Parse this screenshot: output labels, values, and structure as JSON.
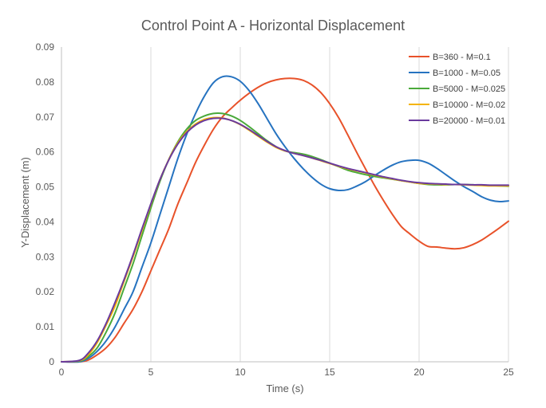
{
  "chart_data": {
    "type": "line",
    "title": "Control Point A - Horizontal Displacement",
    "xlabel": "Time (s)",
    "ylabel": "Y-Displacement (m)",
    "xlim": [
      0,
      25
    ],
    "ylim": [
      0,
      0.09
    ],
    "xticks": [
      0,
      5,
      10,
      15,
      20,
      25
    ],
    "xtick_labels": [
      "0",
      "5",
      "10",
      "15",
      "20",
      "25"
    ],
    "yticks": [
      0,
      0.01,
      0.02,
      0.03,
      0.04,
      0.05,
      0.06,
      0.07,
      0.08,
      0.09
    ],
    "ytick_labels": [
      "0",
      "0.01",
      "0.02",
      "0.03",
      "0.04",
      "0.05",
      "0.06",
      "0.07",
      "0.08",
      "0.09"
    ],
    "grid": "vertical",
    "legend_position": "top-right",
    "series": [
      {
        "name": "B=360 - M=0.1",
        "color": "#e8522a",
        "points": [
          [
            0,
            0
          ],
          [
            1,
            0
          ],
          [
            1.5,
            0.0005
          ],
          [
            2,
            0.002
          ],
          [
            2.5,
            0.004
          ],
          [
            3,
            0.007
          ],
          [
            3.5,
            0.011
          ],
          [
            4,
            0.015
          ],
          [
            4.5,
            0.02
          ],
          [
            5,
            0.026
          ],
          [
            5.5,
            0.032
          ],
          [
            6,
            0.038
          ],
          [
            6.5,
            0.045
          ],
          [
            7,
            0.051
          ],
          [
            7.5,
            0.057
          ],
          [
            8,
            0.062
          ],
          [
            8.5,
            0.0665
          ],
          [
            9,
            0.07
          ],
          [
            9.5,
            0.0725
          ],
          [
            10,
            0.0748
          ],
          [
            10.5,
            0.0768
          ],
          [
            11,
            0.0785
          ],
          [
            11.5,
            0.0798
          ],
          [
            12,
            0.0806
          ],
          [
            12.5,
            0.081
          ],
          [
            13,
            0.081
          ],
          [
            13.5,
            0.0805
          ],
          [
            14,
            0.0792
          ],
          [
            14.5,
            0.077
          ],
          [
            15,
            0.0738
          ],
          [
            15.5,
            0.0698
          ],
          [
            16,
            0.065
          ],
          [
            16.5,
            0.06
          ],
          [
            17,
            0.0552
          ],
          [
            17.5,
            0.0505
          ],
          [
            18,
            0.0462
          ],
          [
            18.5,
            0.0422
          ],
          [
            19,
            0.0387
          ],
          [
            19.5,
            0.0365
          ],
          [
            20,
            0.0345
          ],
          [
            20.5,
            0.033
          ],
          [
            21,
            0.0328
          ],
          [
            21.5,
            0.0325
          ],
          [
            22,
            0.0323
          ],
          [
            22.5,
            0.0326
          ],
          [
            23,
            0.0335
          ],
          [
            23.5,
            0.0348
          ],
          [
            24,
            0.0365
          ],
          [
            24.5,
            0.0383
          ],
          [
            25,
            0.0402
          ]
        ]
      },
      {
        "name": "B=1000 - M=0.05",
        "color": "#2673c0",
        "points": [
          [
            0,
            0
          ],
          [
            1,
            0
          ],
          [
            1.5,
            0.001
          ],
          [
            2,
            0.003
          ],
          [
            2.5,
            0.006
          ],
          [
            3,
            0.01
          ],
          [
            3.5,
            0.015
          ],
          [
            4,
            0.02
          ],
          [
            4.5,
            0.027
          ],
          [
            5,
            0.034
          ],
          [
            5.5,
            0.042
          ],
          [
            6,
            0.05
          ],
          [
            6.5,
            0.058
          ],
          [
            7,
            0.065
          ],
          [
            7.5,
            0.071
          ],
          [
            8,
            0.076
          ],
          [
            8.5,
            0.0798
          ],
          [
            9,
            0.0815
          ],
          [
            9.5,
            0.0815
          ],
          [
            10,
            0.0802
          ],
          [
            10.5,
            0.0775
          ],
          [
            11,
            0.0738
          ],
          [
            11.5,
            0.0695
          ],
          [
            12,
            0.0652
          ],
          [
            12.5,
            0.0615
          ],
          [
            13,
            0.0582
          ],
          [
            13.5,
            0.0553
          ],
          [
            14,
            0.0528
          ],
          [
            14.5,
            0.0508
          ],
          [
            15,
            0.0495
          ],
          [
            15.5,
            0.049
          ],
          [
            16,
            0.0492
          ],
          [
            16.5,
            0.0502
          ],
          [
            17,
            0.0515
          ],
          [
            17.5,
            0.0532
          ],
          [
            18,
            0.0548
          ],
          [
            18.5,
            0.0562
          ],
          [
            19,
            0.0572
          ],
          [
            19.5,
            0.0576
          ],
          [
            20,
            0.0576
          ],
          [
            20.5,
            0.0568
          ],
          [
            21,
            0.0553
          ],
          [
            21.5,
            0.0535
          ],
          [
            22,
            0.0517
          ],
          [
            22.5,
            0.0501
          ],
          [
            23,
            0.0487
          ],
          [
            23.5,
            0.0472
          ],
          [
            24,
            0.0462
          ],
          [
            24.5,
            0.0458
          ],
          [
            25,
            0.046
          ]
        ]
      },
      {
        "name": "B=5000 - M=0.025",
        "color": "#4aa93a",
        "points": [
          [
            0,
            0
          ],
          [
            1,
            0.0002
          ],
          [
            1.5,
            0.0015
          ],
          [
            2,
            0.004
          ],
          [
            2.5,
            0.0085
          ],
          [
            3,
            0.014
          ],
          [
            3.5,
            0.021
          ],
          [
            4,
            0.028
          ],
          [
            4.5,
            0.036
          ],
          [
            5,
            0.044
          ],
          [
            5.5,
            0.0515
          ],
          [
            6,
            0.0578
          ],
          [
            6.5,
            0.0628
          ],
          [
            7,
            0.0665
          ],
          [
            7.5,
            0.069
          ],
          [
            8,
            0.0703
          ],
          [
            8.5,
            0.071
          ],
          [
            9,
            0.071
          ],
          [
            9.5,
            0.0703
          ],
          [
            10,
            0.069
          ],
          [
            10.5,
            0.0672
          ],
          [
            11,
            0.0652
          ],
          [
            11.5,
            0.0632
          ],
          [
            12,
            0.0615
          ],
          [
            12.5,
            0.0603
          ],
          [
            13,
            0.0598
          ],
          [
            13.5,
            0.0594
          ],
          [
            14,
            0.0587
          ],
          [
            14.5,
            0.0578
          ],
          [
            15,
            0.0568
          ],
          [
            15.5,
            0.0558
          ],
          [
            16,
            0.0548
          ],
          [
            16.5,
            0.0541
          ],
          [
            17,
            0.0535
          ],
          [
            17.5,
            0.053
          ],
          [
            18,
            0.0526
          ],
          [
            18.5,
            0.0522
          ],
          [
            19,
            0.0518
          ],
          [
            19.5,
            0.0514
          ],
          [
            20,
            0.051
          ],
          [
            20.5,
            0.0507
          ],
          [
            21,
            0.0506
          ],
          [
            21.5,
            0.0506
          ],
          [
            22,
            0.0507
          ],
          [
            22.5,
            0.0507
          ],
          [
            23,
            0.0506
          ],
          [
            23.5,
            0.0505
          ],
          [
            24,
            0.0504
          ],
          [
            24.5,
            0.0503
          ],
          [
            25,
            0.0502
          ]
        ]
      },
      {
        "name": "B=10000 - M=0.02",
        "color": "#f4b400",
        "points": [
          [
            0,
            0
          ],
          [
            1,
            0.0003
          ],
          [
            1.5,
            0.002
          ],
          [
            2,
            0.0055
          ],
          [
            2.5,
            0.0105
          ],
          [
            3,
            0.016
          ],
          [
            3.5,
            0.023
          ],
          [
            4,
            0.03
          ],
          [
            4.5,
            0.0375
          ],
          [
            5,
            0.045
          ],
          [
            5.5,
            0.052
          ],
          [
            6,
            0.0578
          ],
          [
            6.5,
            0.0625
          ],
          [
            7,
            0.0658
          ],
          [
            7.5,
            0.068
          ],
          [
            8,
            0.0693
          ],
          [
            8.5,
            0.0698
          ],
          [
            9,
            0.0697
          ],
          [
            9.5,
            0.069
          ],
          [
            10,
            0.0678
          ],
          [
            10.5,
            0.0662
          ],
          [
            11,
            0.0645
          ],
          [
            11.5,
            0.0628
          ],
          [
            12,
            0.0613
          ],
          [
            12.5,
            0.0603
          ],
          [
            13,
            0.0596
          ],
          [
            13.5,
            0.059
          ],
          [
            14,
            0.0583
          ],
          [
            14.5,
            0.0575
          ],
          [
            15,
            0.0567
          ],
          [
            15.5,
            0.0559
          ],
          [
            16,
            0.0552
          ],
          [
            16.5,
            0.0546
          ],
          [
            17,
            0.054
          ],
          [
            17.5,
            0.0534
          ],
          [
            18,
            0.0528
          ],
          [
            18.5,
            0.0523
          ],
          [
            19,
            0.0518
          ],
          [
            19.5,
            0.0514
          ],
          [
            20,
            0.051
          ],
          [
            20.5,
            0.0509
          ],
          [
            21,
            0.0508
          ],
          [
            21.5,
            0.0507
          ],
          [
            22,
            0.0507
          ],
          [
            22.5,
            0.0506
          ],
          [
            23,
            0.0505
          ],
          [
            23.5,
            0.0504
          ],
          [
            24,
            0.0503
          ],
          [
            24.5,
            0.0503
          ],
          [
            25,
            0.0503
          ]
        ]
      },
      {
        "name": "B=20000 - M=0.01",
        "color": "#6a3a9e",
        "points": [
          [
            0,
            0
          ],
          [
            1,
            0.0004
          ],
          [
            1.5,
            0.0025
          ],
          [
            2,
            0.006
          ],
          [
            2.5,
            0.011
          ],
          [
            3,
            0.017
          ],
          [
            3.5,
            0.0235
          ],
          [
            4,
            0.0305
          ],
          [
            4.5,
            0.038
          ],
          [
            5,
            0.0452
          ],
          [
            5.5,
            0.052
          ],
          [
            6,
            0.0577
          ],
          [
            6.5,
            0.0622
          ],
          [
            7,
            0.0655
          ],
          [
            7.5,
            0.0677
          ],
          [
            8,
            0.069
          ],
          [
            8.5,
            0.0696
          ],
          [
            9,
            0.0696
          ],
          [
            9.5,
            0.069
          ],
          [
            10,
            0.0679
          ],
          [
            10.5,
            0.0664
          ],
          [
            11,
            0.0647
          ],
          [
            11.5,
            0.063
          ],
          [
            12,
            0.0615
          ],
          [
            12.5,
            0.0604
          ],
          [
            13,
            0.0596
          ],
          [
            13.5,
            0.059
          ],
          [
            14,
            0.0583
          ],
          [
            14.5,
            0.0576
          ],
          [
            15,
            0.0568
          ],
          [
            15.5,
            0.056
          ],
          [
            16,
            0.0553
          ],
          [
            16.5,
            0.0547
          ],
          [
            17,
            0.0541
          ],
          [
            17.5,
            0.0535
          ],
          [
            18,
            0.0529
          ],
          [
            18.5,
            0.0524
          ],
          [
            19,
            0.0519
          ],
          [
            19.5,
            0.0515
          ],
          [
            20,
            0.0512
          ],
          [
            20.5,
            0.051
          ],
          [
            21,
            0.0509
          ],
          [
            21.5,
            0.0508
          ],
          [
            22,
            0.0507
          ],
          [
            22.5,
            0.0507
          ],
          [
            23,
            0.0506
          ],
          [
            23.5,
            0.0506
          ],
          [
            24,
            0.0505
          ],
          [
            24.5,
            0.0505
          ],
          [
            25,
            0.0505
          ]
        ]
      }
    ]
  }
}
